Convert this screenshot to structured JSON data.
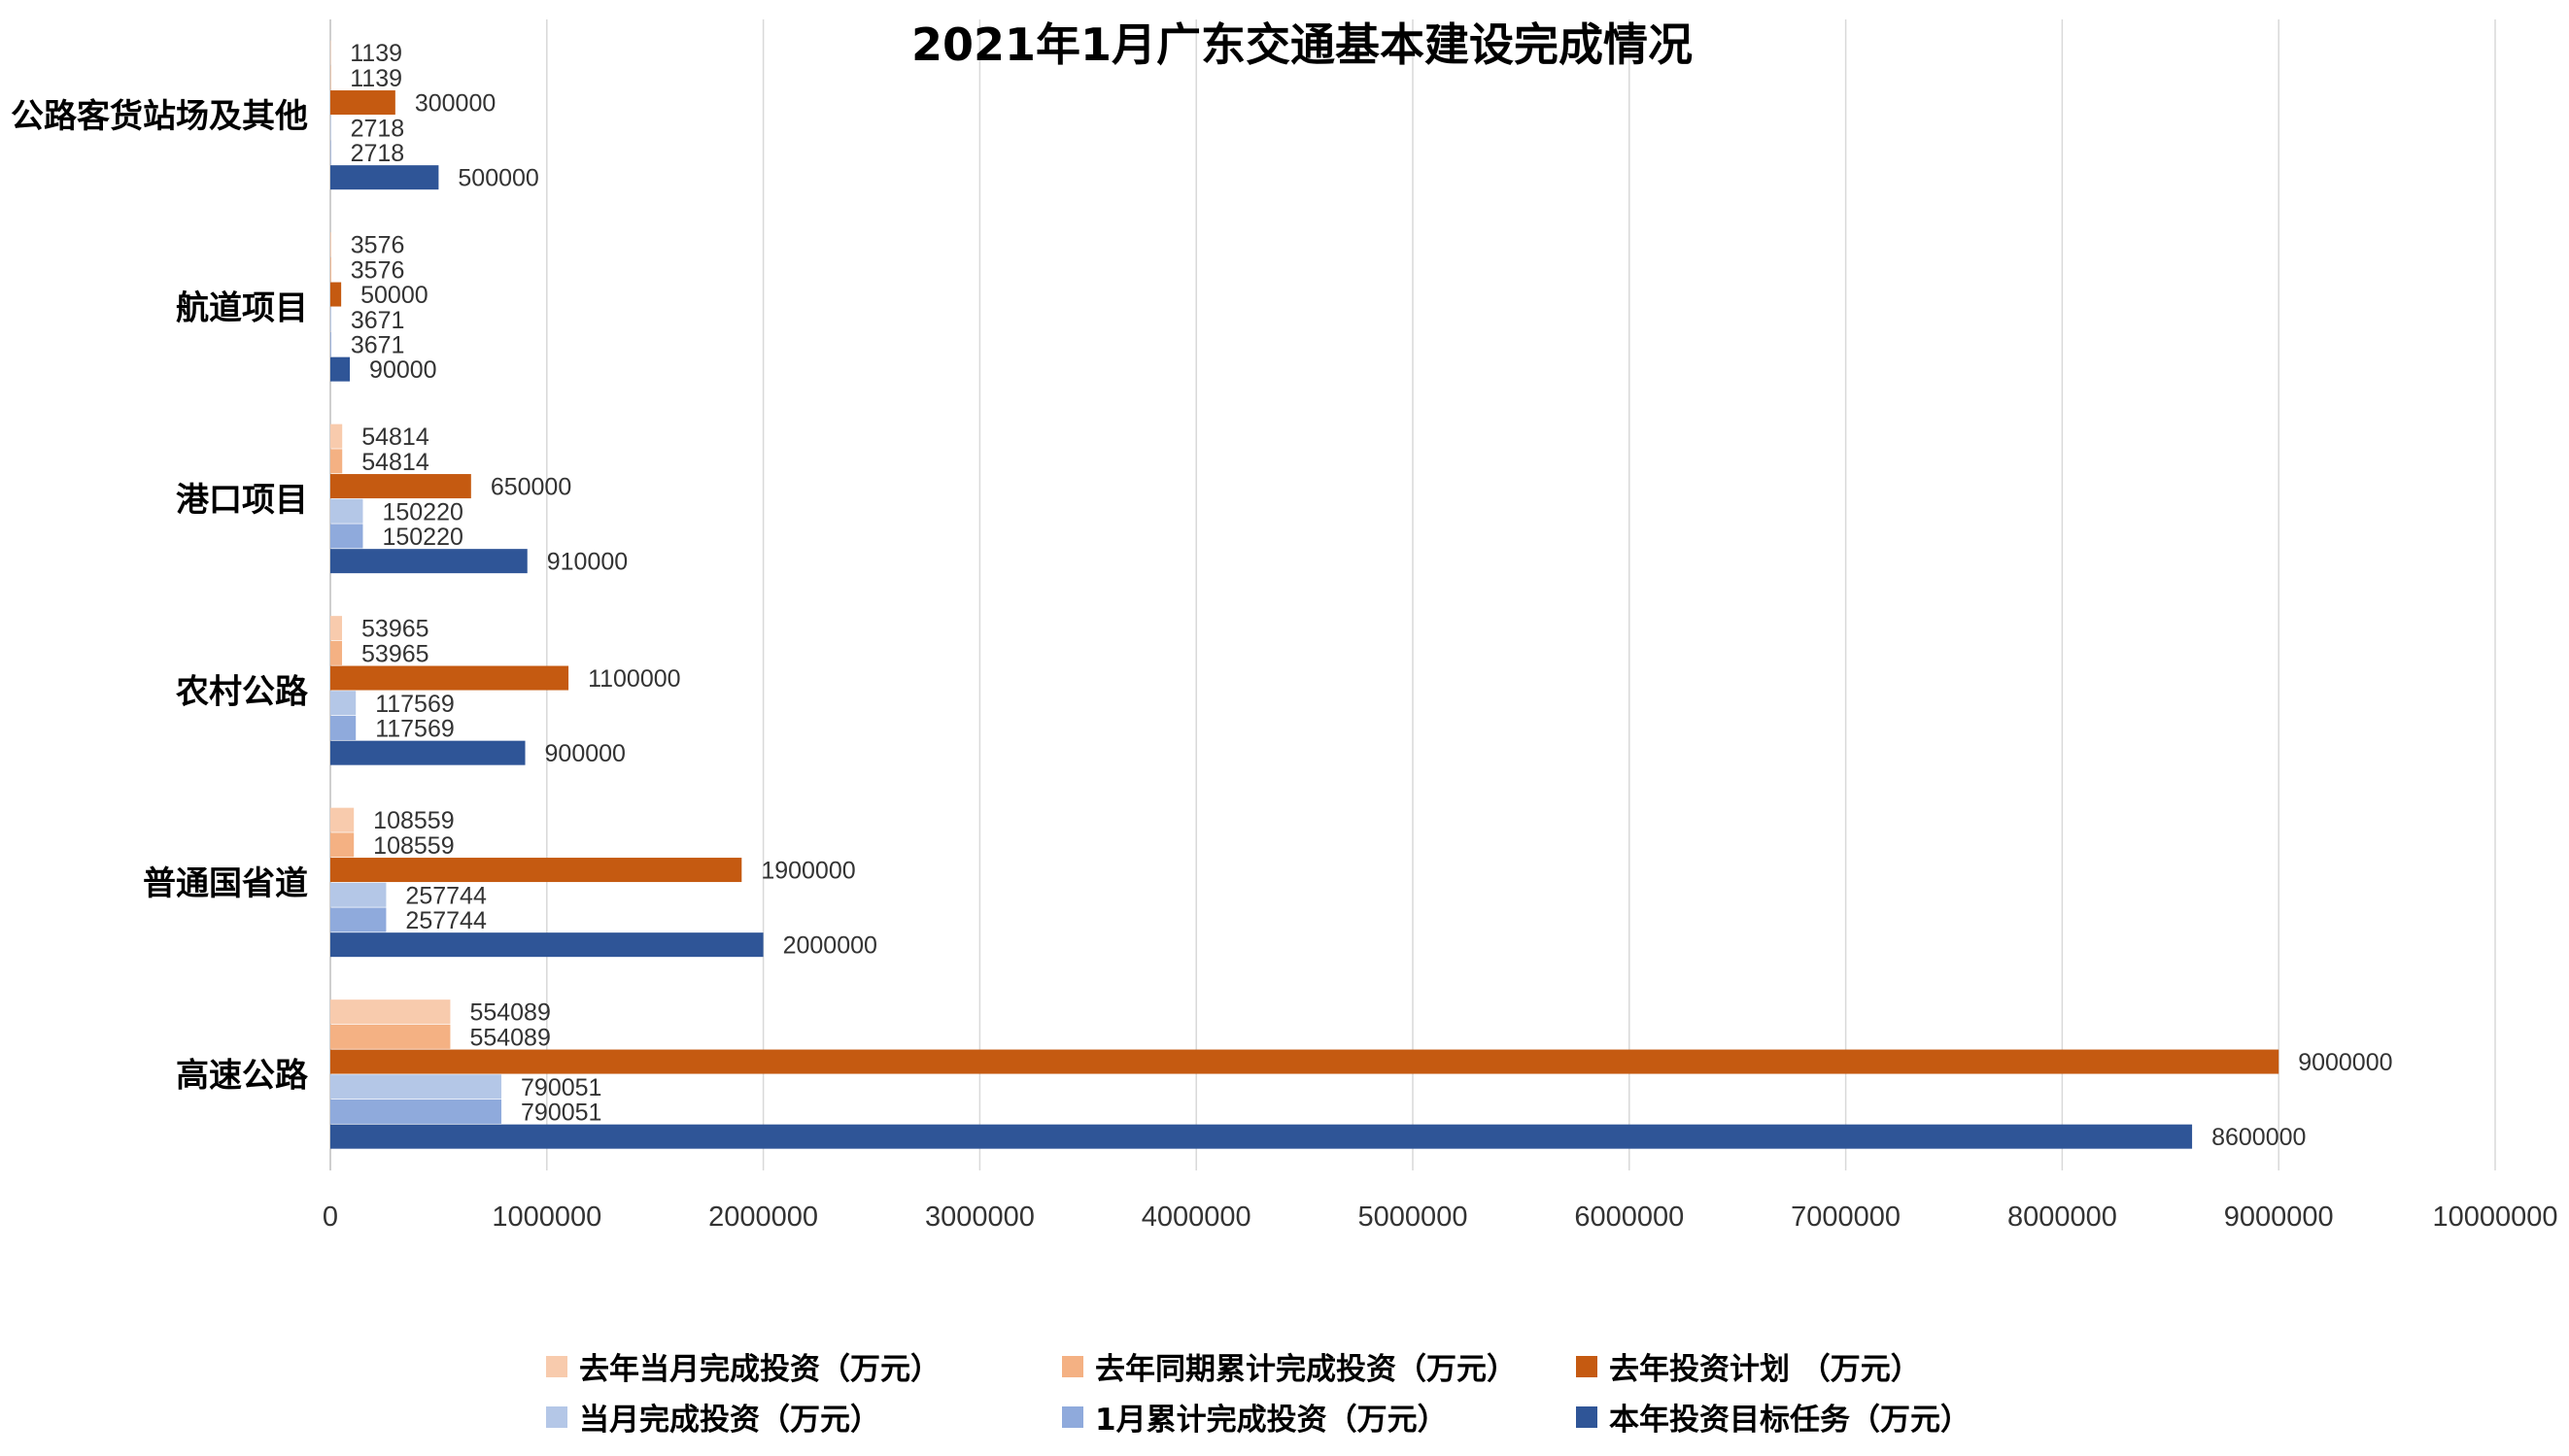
{
  "chart_data": {
    "type": "bar",
    "orientation": "horizontal",
    "title": "2021年1月广东交通基本建设完成情况",
    "categories": [
      "公路客货站场及其他",
      "航道项目",
      "港口项目",
      "农村公路",
      "普通国省道",
      "高速公路"
    ],
    "series": [
      {
        "name": "去年当月完成投资（万元）",
        "color": "#F8CBAD",
        "values": [
          1139,
          3576,
          54814,
          53965,
          108559,
          554089
        ]
      },
      {
        "name": "去年同期累计完成投资（万元）",
        "color": "#F4B183",
        "values": [
          1139,
          3576,
          54814,
          53965,
          108559,
          554089
        ]
      },
      {
        "name": "去年投资计划 （万元）",
        "color": "#C55A11",
        "values": [
          300000,
          50000,
          650000,
          1100000,
          1900000,
          9000000
        ]
      },
      {
        "name": "当月完成投资（万元）",
        "color": "#B4C7E7",
        "values": [
          2718,
          3671,
          150220,
          117569,
          257744,
          790051
        ]
      },
      {
        "name": "1月累计完成投资（万元）",
        "color": "#8FAADC",
        "values": [
          2718,
          3671,
          150220,
          117569,
          257744,
          790051
        ]
      },
      {
        "name": "本年投资目标任务（万元）",
        "color": "#2F5597",
        "values": [
          500000,
          90000,
          910000,
          900000,
          2000000,
          8600000
        ]
      }
    ],
    "xlim": [
      0,
      10000000
    ],
    "xticks": [
      0,
      1000000,
      2000000,
      3000000,
      4000000,
      5000000,
      6000000,
      7000000,
      8000000,
      9000000,
      10000000
    ],
    "grid": "vertical",
    "legend_position": "bottom",
    "legend_columns": 3
  }
}
